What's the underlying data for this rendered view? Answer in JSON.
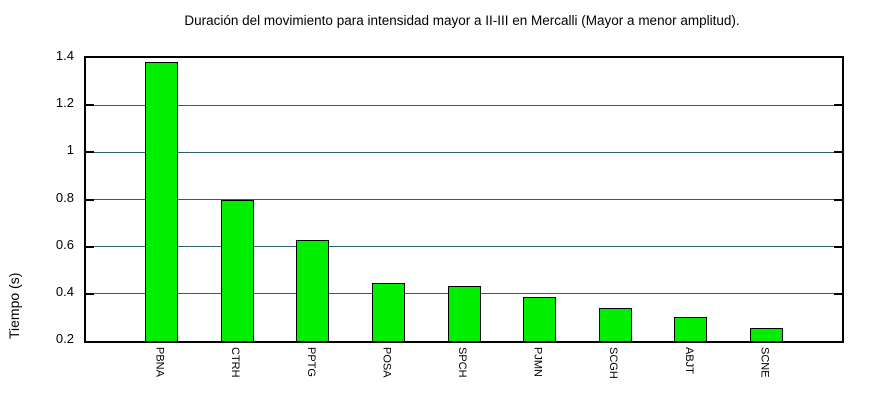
{
  "chart_data": {
    "type": "bar",
    "title": "Duración del movimiento para intensidad mayor a II-III en Mercalli (Mayor a menor amplitud).",
    "xlabel": "",
    "ylabel": "Tiempo (s)",
    "categories": [
      "PBNA",
      "CTRH",
      "PPTG",
      "POSA",
      "SPCH",
      "PJMN",
      "SCGH",
      "ABJT",
      "SCNE"
    ],
    "values": [
      1.385,
      0.8,
      0.63,
      0.445,
      0.435,
      0.385,
      0.34,
      0.3,
      0.255
    ],
    "ylim": [
      0.2,
      1.4
    ],
    "yticks": [
      0.2,
      0.4,
      0.6,
      0.8,
      1,
      1.2,
      1.4
    ],
    "grid": true,
    "legend": "none",
    "colors": {
      "bar_fill": "#00ee00",
      "bar_border": "#000000",
      "grid_line": "#2b5f7d",
      "frame": "#000000",
      "background": "#ffffff",
      "text": "#000000"
    }
  }
}
